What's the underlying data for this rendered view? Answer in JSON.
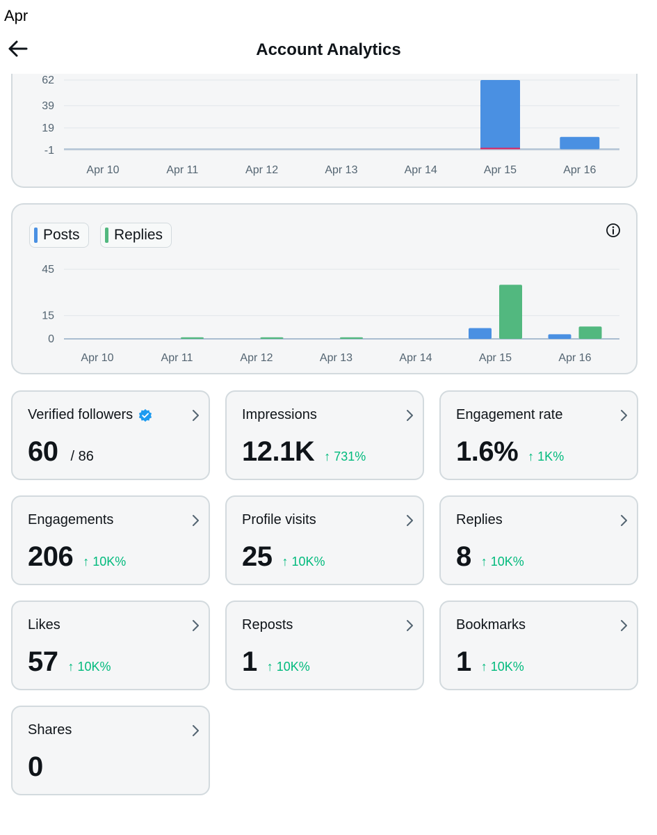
{
  "status_bar": {
    "time_fragment": "Apr"
  },
  "header": {
    "title": "Account Analytics"
  },
  "colors": {
    "posts": "#4a90e2",
    "replies": "#52b87f",
    "baseline_red": "#e0245e",
    "delta_green": "#00ba7c",
    "verified_blue": "#1d9bf0"
  },
  "chart_data": [
    {
      "type": "bar",
      "title": "",
      "categories": [
        "Apr 10",
        "Apr 11",
        "Apr 12",
        "Apr 13",
        "Apr 14",
        "Apr 15",
        "Apr 16"
      ],
      "yticks": [
        "62",
        "39",
        "19",
        "-1"
      ],
      "ytick_values": [
        62,
        39,
        19,
        -1
      ],
      "ylim": [
        -1,
        62
      ],
      "series": [
        {
          "name": "Posts",
          "color": "#4a90e2",
          "values": [
            0,
            0,
            0,
            0,
            0,
            62,
            11
          ]
        }
      ],
      "xlabel": "",
      "ylabel": "",
      "grid": true
    },
    {
      "type": "bar",
      "title": "",
      "categories": [
        "Apr 10",
        "Apr 11",
        "Apr 12",
        "Apr 13",
        "Apr 14",
        "Apr 15",
        "Apr 16"
      ],
      "yticks": [
        "45",
        "15",
        "0"
      ],
      "ytick_values": [
        45,
        15,
        0
      ],
      "ylim": [
        0,
        45
      ],
      "legend": [
        {
          "label": "Posts",
          "color": "#4a90e2"
        },
        {
          "label": "Replies",
          "color": "#52b87f"
        }
      ],
      "series": [
        {
          "name": "Posts",
          "color": "#4a90e2",
          "values": [
            0,
            0,
            0,
            0,
            0,
            7,
            3
          ]
        },
        {
          "name": "Replies",
          "color": "#52b87f",
          "values": [
            0,
            1,
            1,
            1,
            0,
            35,
            8
          ]
        }
      ],
      "xlabel": "",
      "ylabel": "",
      "grid": true
    }
  ],
  "stats": [
    {
      "label": "Verified followers",
      "value": "60",
      "sub": "/ 86",
      "delta": "",
      "verified": true
    },
    {
      "label": "Impressions",
      "value": "12.1K",
      "sub": "",
      "delta": "↑ 731%"
    },
    {
      "label": "Engagement rate",
      "value": "1.6%",
      "sub": "",
      "delta": "↑ 1K%"
    },
    {
      "label": "Engagements",
      "value": "206",
      "sub": "",
      "delta": "↑ 10K%"
    },
    {
      "label": "Profile visits",
      "value": "25",
      "sub": "",
      "delta": "↑ 10K%"
    },
    {
      "label": "Replies",
      "value": "8",
      "sub": "",
      "delta": "↑ 10K%"
    },
    {
      "label": "Likes",
      "value": "57",
      "sub": "",
      "delta": "↑ 10K%"
    },
    {
      "label": "Reposts",
      "value": "1",
      "sub": "",
      "delta": "↑ 10K%"
    },
    {
      "label": "Bookmarks",
      "value": "1",
      "sub": "",
      "delta": "↑ 10K%"
    },
    {
      "label": "Shares",
      "value": "0",
      "sub": "",
      "delta": ""
    }
  ]
}
